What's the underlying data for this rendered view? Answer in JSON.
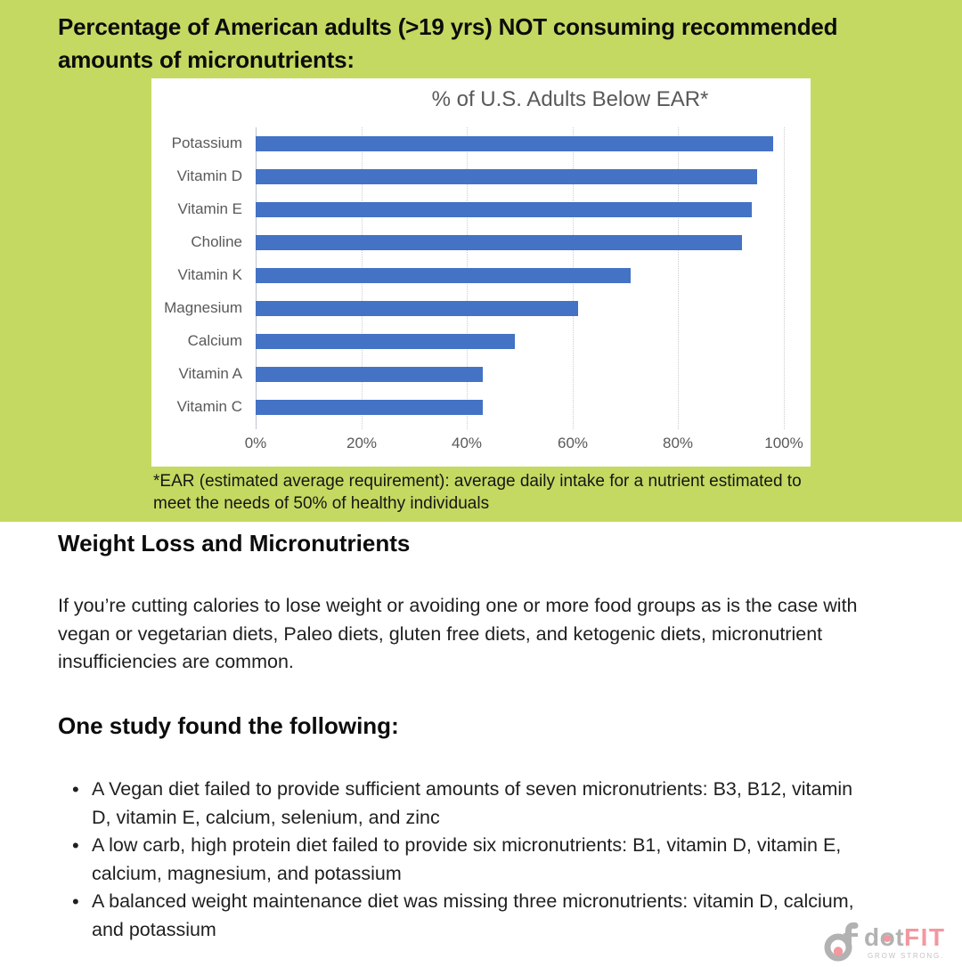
{
  "header": {
    "title": "Percentage of American adults (>19 yrs) NOT consuming recommended amounts of micronutrients:",
    "background_color": "#c4d961",
    "footnote": "*EAR (estimated average requirement): average daily intake for a nutrient estimated to meet the needs of 50% of healthy individuals"
  },
  "chart_data": {
    "type": "bar",
    "orientation": "horizontal",
    "title": "% of U.S. Adults Below EAR*",
    "categories": [
      "Potassium",
      "Vitamin D",
      "Vitamin E",
      "Choline",
      "Vitamin K",
      "Magnesium",
      "Calcium",
      "Vitamin A",
      "Vitamin C"
    ],
    "values": [
      98,
      95,
      94,
      92,
      71,
      61,
      49,
      43,
      43
    ],
    "x_ticks": [
      "0%",
      "20%",
      "40%",
      "60%",
      "80%",
      "100%"
    ],
    "xlim": [
      0,
      100
    ],
    "xlabel": "",
    "ylabel": "",
    "bar_color": "#4472c4",
    "grid": true,
    "legend": false,
    "title_color": "#595959",
    "axis_text_color": "#595959"
  },
  "body": {
    "section1_heading": "Weight Loss and Micronutrients",
    "section1_paragraph": "If you’re cutting calories to lose weight or avoiding one or more food groups as is the case with vegan or vegetarian diets, Paleo diets, gluten free diets, and ketogenic diets, micronutrient insufficiencies are common.",
    "section2_heading": "One study found the following:",
    "bullets": [
      "A Vegan diet failed to provide sufficient amounts of seven micronutrients: B3, B12, vitamin D, vitamin E, calcium, selenium, and zinc",
      "A low carb, high protein diet failed to provide six micronutrients: B1, vitamin D, vitamin E, calcium, magnesium, and potassium",
      "A balanced weight maintenance diet was missing three micronutrients: vitamin D, calcium, and potassium"
    ]
  },
  "logo": {
    "brand_dot": "dot",
    "brand_fit": "FIT",
    "tagline": "GROW STRONG.",
    "gray": "#b2b2b2",
    "pink": "#f2989f"
  }
}
